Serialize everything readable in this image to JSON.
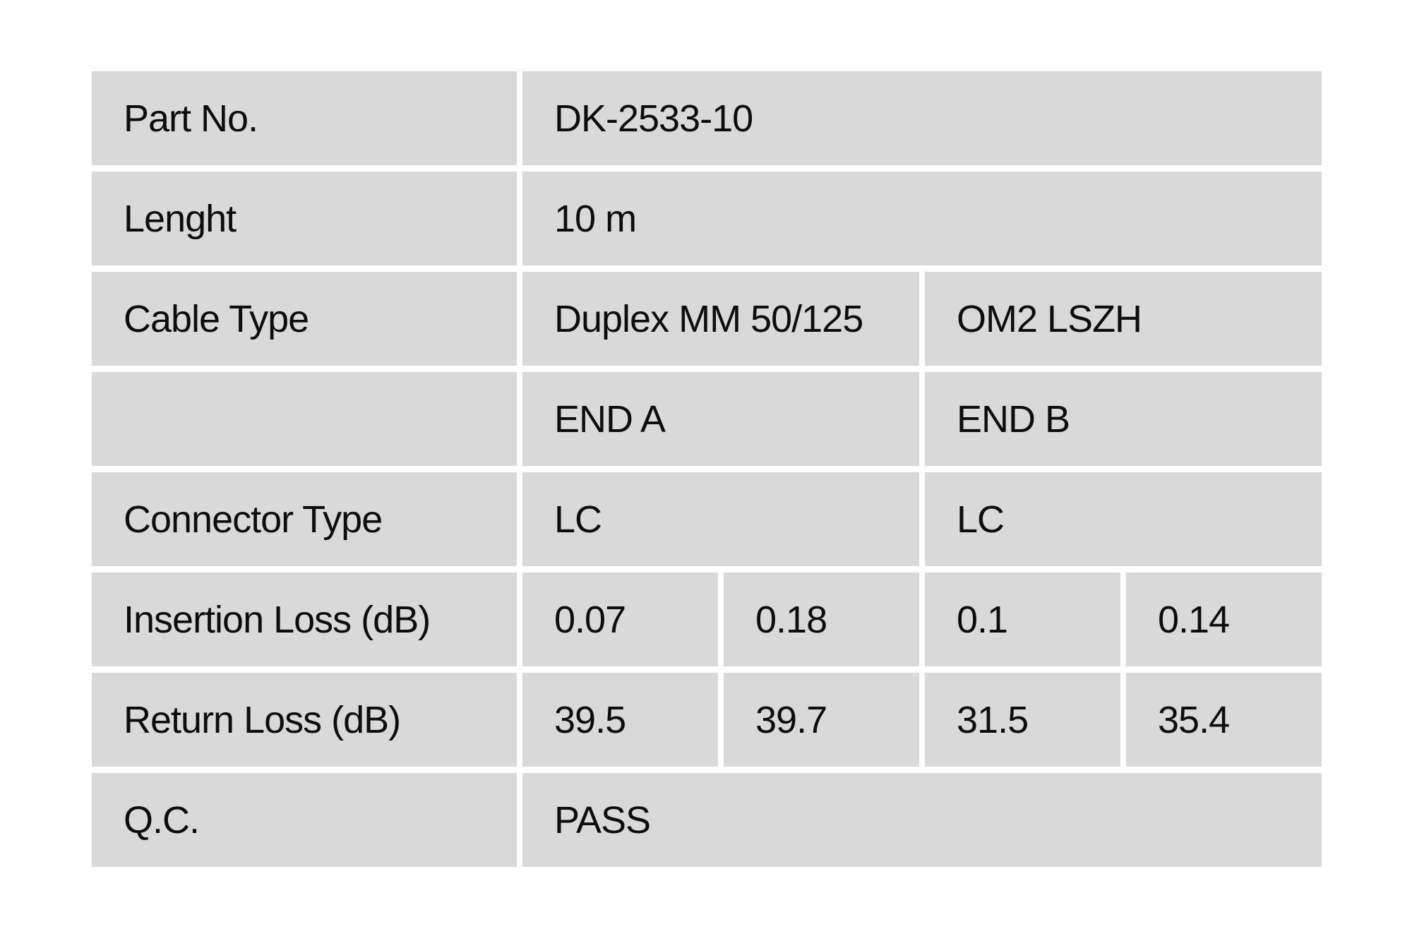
{
  "colors": {
    "page-bg": "#ffffff",
    "cell-bg": "#d9d9d9",
    "text": "#0d0d0d"
  },
  "table": {
    "rows": [
      {
        "label": "Part No.",
        "value": "DK-2533-10"
      },
      {
        "label": "Lenght",
        "value": "10 m"
      },
      {
        "label": "Cable Type",
        "end_a": "Duplex MM 50/125",
        "end_b": "OM2 LSZH"
      },
      {
        "label": "",
        "end_a": "END A",
        "end_b": "END B"
      },
      {
        "label": "Connector Type",
        "end_a": "LC",
        "end_b": "LC"
      },
      {
        "label": "Insertion Loss (dB)",
        "values": [
          "0.07",
          "0.18",
          "0.1",
          "0.14"
        ]
      },
      {
        "label": "Return Loss (dB)",
        "values": [
          "39.5",
          "39.7",
          "31.5",
          "35.4"
        ]
      },
      {
        "label": "Q.C.",
        "value": "PASS"
      }
    ]
  }
}
